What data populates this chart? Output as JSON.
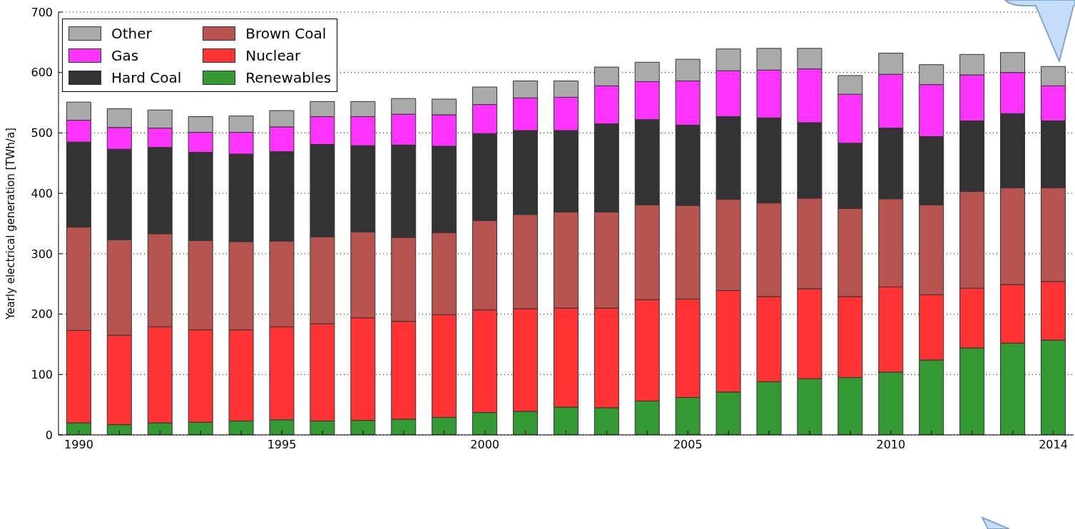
{
  "chart_data": {
    "type": "bar",
    "stacked": true,
    "ylabel": "Yearly electrical generation [TWh/a]",
    "categories": [
      "1990",
      null,
      null,
      null,
      null,
      "1995",
      null,
      null,
      null,
      null,
      "2000",
      null,
      null,
      null,
      null,
      "2005",
      null,
      null,
      null,
      null,
      "2010",
      null,
      null,
      null,
      "2014"
    ],
    "series": [
      {
        "name": "Renewables",
        "color": "#339933",
        "values": [
          20,
          17,
          20,
          21,
          23,
          25,
          23,
          24,
          26,
          29,
          37,
          39,
          46,
          45,
          56,
          62,
          71,
          88,
          93,
          95,
          104,
          124,
          144,
          152,
          157
        ]
      },
      {
        "name": "Nuclear",
        "color": "#ff3333",
        "values": [
          153,
          148,
          159,
          153,
          151,
          154,
          161,
          170,
          162,
          170,
          170,
          170,
          164,
          165,
          168,
          163,
          168,
          141,
          149,
          134,
          141,
          108,
          99,
          97,
          97
        ]
      },
      {
        "name": "Brown Coal",
        "color": "#b85450",
        "values": [
          171,
          158,
          154,
          148,
          146,
          142,
          144,
          142,
          139,
          136,
          148,
          156,
          159,
          159,
          157,
          155,
          151,
          155,
          150,
          146,
          146,
          149,
          160,
          160,
          155
        ]
      },
      {
        "name": "Hard Coal",
        "color": "#333333",
        "values": [
          141,
          150,
          143,
          146,
          145,
          148,
          153,
          143,
          153,
          143,
          144,
          139,
          135,
          146,
          141,
          133,
          137,
          141,
          125,
          108,
          117,
          113,
          117,
          123,
          111
        ]
      },
      {
        "name": "Gas",
        "color": "#ff33ff",
        "values": [
          36,
          36,
          32,
          33,
          36,
          41,
          46,
          48,
          51,
          52,
          48,
          54,
          55,
          63,
          63,
          73,
          76,
          79,
          89,
          81,
          89,
          86,
          76,
          68,
          58
        ]
      },
      {
        "name": "Other",
        "color": "#aaaaaa",
        "values": [
          30,
          31,
          30,
          26,
          27,
          27,
          25,
          25,
          26,
          26,
          29,
          28,
          27,
          31,
          32,
          36,
          36,
          36,
          34,
          31,
          35,
          33,
          34,
          33,
          32
        ]
      }
    ],
    "ylim": [
      0,
      700
    ],
    "yticks": [
      0,
      100,
      200,
      300,
      400,
      500,
      600,
      700
    ],
    "grid": "y",
    "legend": "top left"
  }
}
